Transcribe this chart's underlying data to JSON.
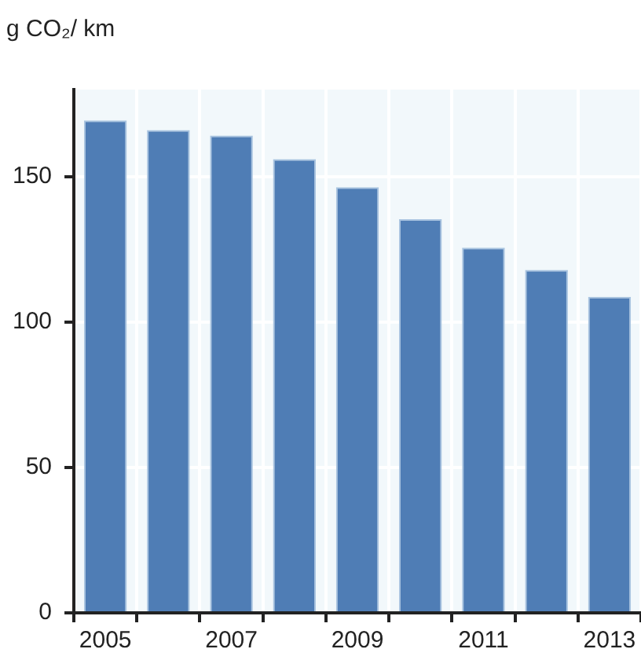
{
  "chart_data": {
    "type": "bar",
    "ylabel": "g CO₂/ km",
    "categories": [
      "2005",
      null,
      "2007",
      null,
      "2009",
      null,
      "2011",
      null,
      "2013"
    ],
    "values": [
      169.4,
      166.1,
      164.2,
      156.1,
      146.4,
      135.4,
      125.6,
      118,
      108.7
    ],
    "color": "#4f7db5",
    "ylim": [
      0,
      180
    ],
    "yticks": [
      0,
      50,
      100,
      150
    ],
    "grid": true,
    "legend": false
  }
}
